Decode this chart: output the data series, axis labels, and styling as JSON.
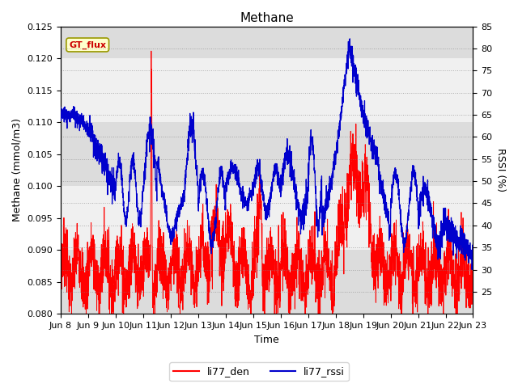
{
  "title": "Methane",
  "ylabel_left": "Methane (mmol/m3)",
  "ylabel_right": "RSSI (%)",
  "xlabel": "Time",
  "ylim_left": [
    0.08,
    0.125
  ],
  "ylim_right": [
    20,
    85
  ],
  "yticks_left": [
    0.08,
    0.085,
    0.09,
    0.095,
    0.1,
    0.105,
    0.11,
    0.115,
    0.12,
    0.125
  ],
  "yticks_right": [
    25,
    30,
    35,
    40,
    45,
    50,
    55,
    60,
    65,
    70,
    75,
    80,
    85
  ],
  "xtick_labels": [
    "Jun 8",
    "Jun 9",
    "Jun 10",
    "Jun 11",
    "Jun 12",
    "Jun 13",
    "Jun 14",
    "Jun 15",
    "Jun 16",
    "Jun 17",
    "Jun 18",
    "Jun 19",
    "Jun 20",
    "Jun 21",
    "Jun 22",
    "Jun 23"
  ],
  "color_red": "#FF0000",
  "color_blue": "#0000CC",
  "legend_label_red": "li77_den",
  "legend_label_blue": "li77_rssi",
  "annotation_text": "GT_flux",
  "annotation_color": "#CC0000",
  "annotation_bg": "#FFFFCC",
  "annotation_border": "#999900",
  "background_color": "#FFFFFF",
  "plot_bg_color": "#E8E8E8",
  "title_fontsize": 11,
  "axis_label_fontsize": 9,
  "tick_fontsize": 8
}
